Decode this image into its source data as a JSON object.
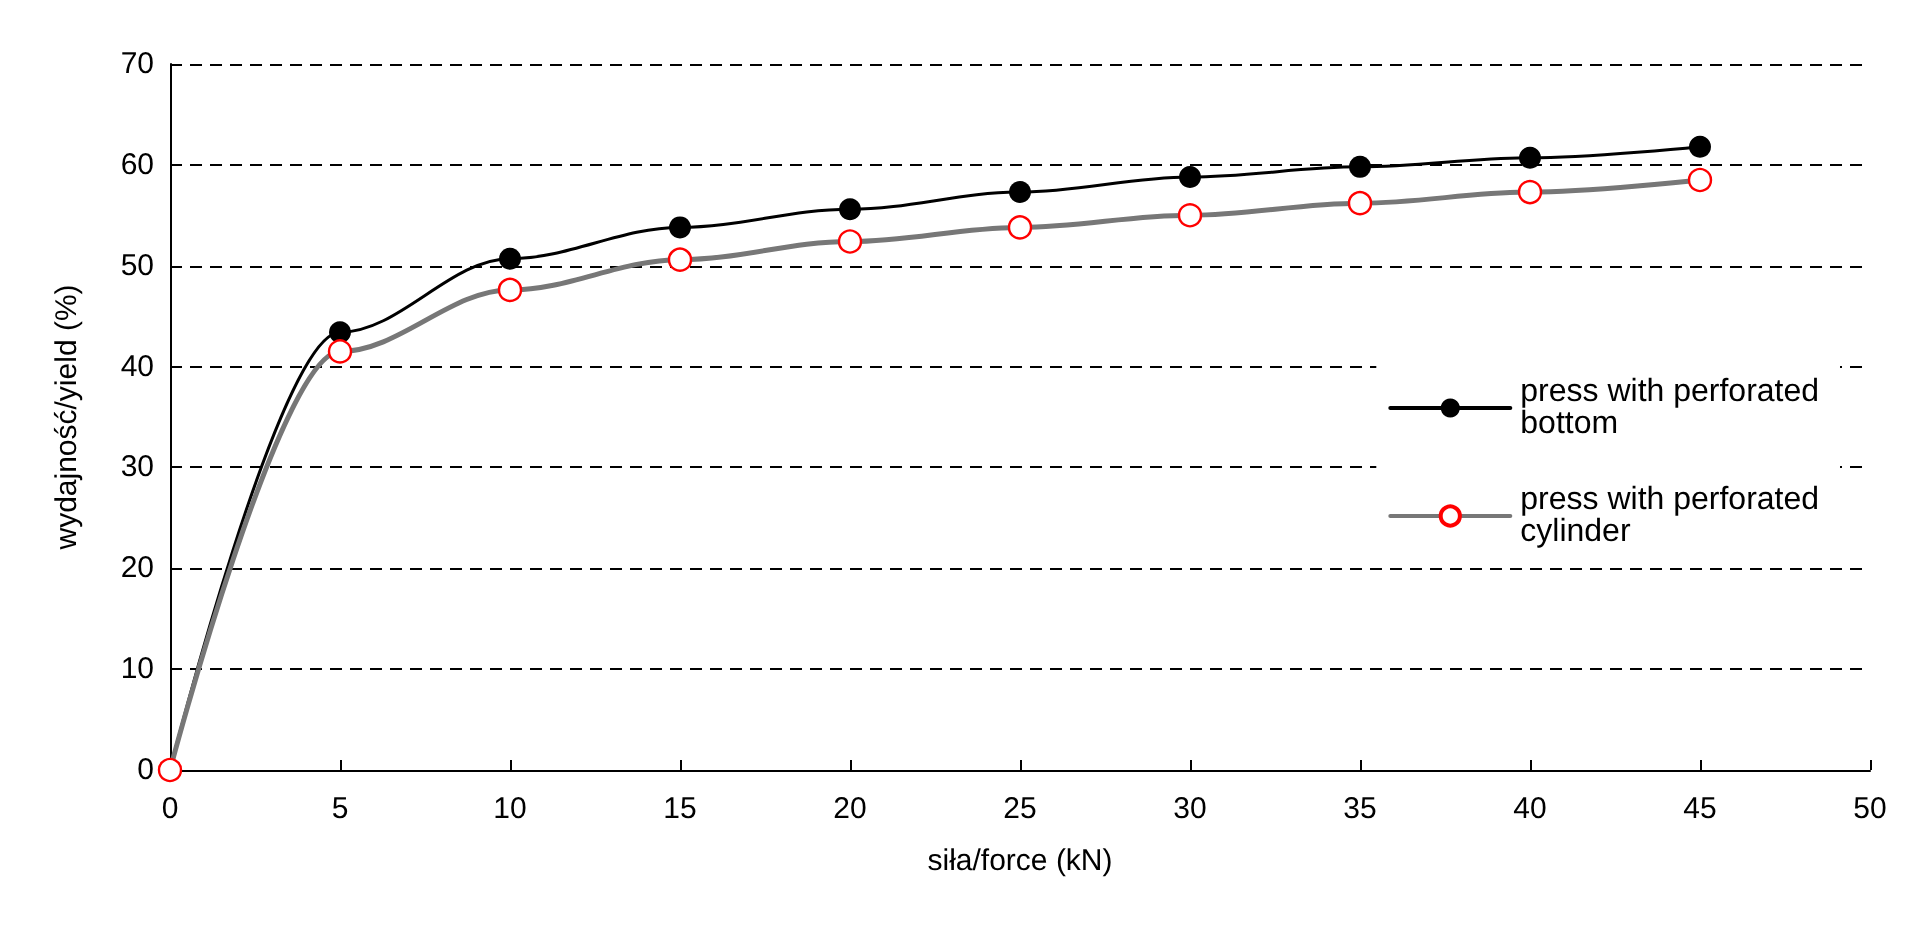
{
  "chart_data": {
    "type": "line",
    "xlabel": "siła/force (kN)",
    "ylabel": "wydajność/yield (%)",
    "x": [
      0,
      5,
      10,
      15,
      20,
      25,
      30,
      35,
      40,
      45
    ],
    "series": [
      {
        "name": "press with perforated bottom",
        "color": "#000000",
        "values": [
          0,
          43.4,
          50.7,
          53.8,
          55.6,
          57.3,
          58.8,
          59.8,
          60.7,
          61.8
        ]
      },
      {
        "name": "press with perforated cylinder",
        "color": "#ff0000",
        "values": [
          0,
          41.5,
          47.6,
          50.6,
          52.4,
          53.8,
          55.0,
          56.2,
          57.3,
          58.5
        ]
      }
    ],
    "xlim": [
      0,
      50
    ],
    "xticks": [
      0,
      5,
      10,
      15,
      20,
      25,
      30,
      35,
      40,
      45,
      50
    ],
    "ylim": [
      0,
      70
    ],
    "yticks": [
      0,
      10,
      20,
      30,
      40,
      50,
      60,
      70
    ],
    "grid": "y",
    "legend": "right",
    "marker": "circle",
    "line_style": "solid"
  }
}
